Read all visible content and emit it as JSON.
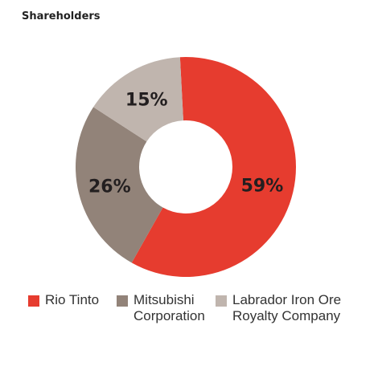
{
  "chart_data": {
    "type": "pie",
    "title": "Shareholders",
    "categories": [
      "Rio Tinto",
      "Mitsubishi Corporation",
      "Labrador Iron Ore Royalty Company"
    ],
    "values": [
      59,
      26,
      15
    ],
    "value_labels": [
      "59%",
      "26%",
      "15%"
    ],
    "colors": [
      "#e63c2f",
      "#928379",
      "#c0b5ae"
    ]
  }
}
